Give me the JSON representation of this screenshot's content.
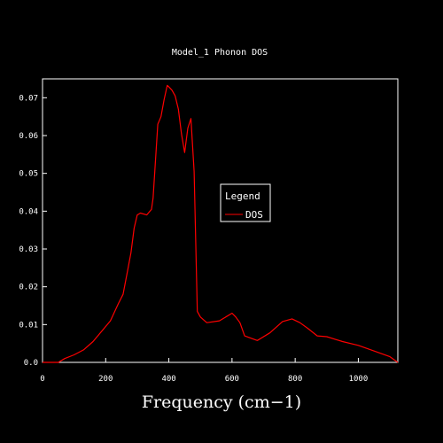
{
  "chart_data": {
    "type": "line",
    "title": "Model_1 Phonon DOS",
    "xlabel": "Frequency (cm−1)",
    "ylabel": "",
    "xlim": [
      0,
      1125
    ],
    "ylim": [
      0,
      0.075
    ],
    "x_ticks": [
      "0",
      "200",
      "400",
      "600",
      "800",
      "1000"
    ],
    "x_tick_values": [
      0,
      200,
      400,
      600,
      800,
      1000
    ],
    "y_ticks": [
      "0.0",
      "0.01",
      "0.02",
      "0.03",
      "0.04",
      "0.05",
      "0.06",
      "0.07"
    ],
    "y_tick_values": [
      0,
      0.01,
      0.02,
      0.03,
      0.04,
      0.05,
      0.06,
      0.07
    ],
    "grid": false,
    "legend": {
      "title": "Legend",
      "placement": "center-right"
    },
    "series": [
      {
        "name": "DOS",
        "color": "#ff0000",
        "x": [
          0,
          50,
          70,
          100,
          130,
          160,
          190,
          215,
          240,
          255,
          270,
          280,
          290,
          300,
          310,
          330,
          345,
          350,
          365,
          375,
          385,
          395,
          402,
          410,
          420,
          430,
          440,
          450,
          460,
          470,
          480,
          490,
          500,
          520,
          560,
          600,
          612,
          625,
          640,
          680,
          720,
          760,
          790,
          815,
          840,
          870,
          900,
          950,
          1000,
          1050,
          1100,
          1125
        ],
        "y": [
          0,
          0,
          0.001,
          0.002,
          0.0033,
          0.0055,
          0.0085,
          0.011,
          0.0155,
          0.018,
          0.0245,
          0.029,
          0.0355,
          0.039,
          0.0395,
          0.039,
          0.0405,
          0.0435,
          0.063,
          0.065,
          0.0695,
          0.0733,
          0.0727,
          0.072,
          0.0705,
          0.067,
          0.0605,
          0.0555,
          0.062,
          0.0645,
          0.0505,
          0.0135,
          0.012,
          0.0105,
          0.011,
          0.013,
          0.012,
          0.0105,
          0.007,
          0.0058,
          0.0078,
          0.0108,
          0.0115,
          0.0105,
          0.009,
          0.007,
          0.0068,
          0.0055,
          0.0045,
          0.003,
          0.0015,
          0
        ]
      }
    ]
  }
}
